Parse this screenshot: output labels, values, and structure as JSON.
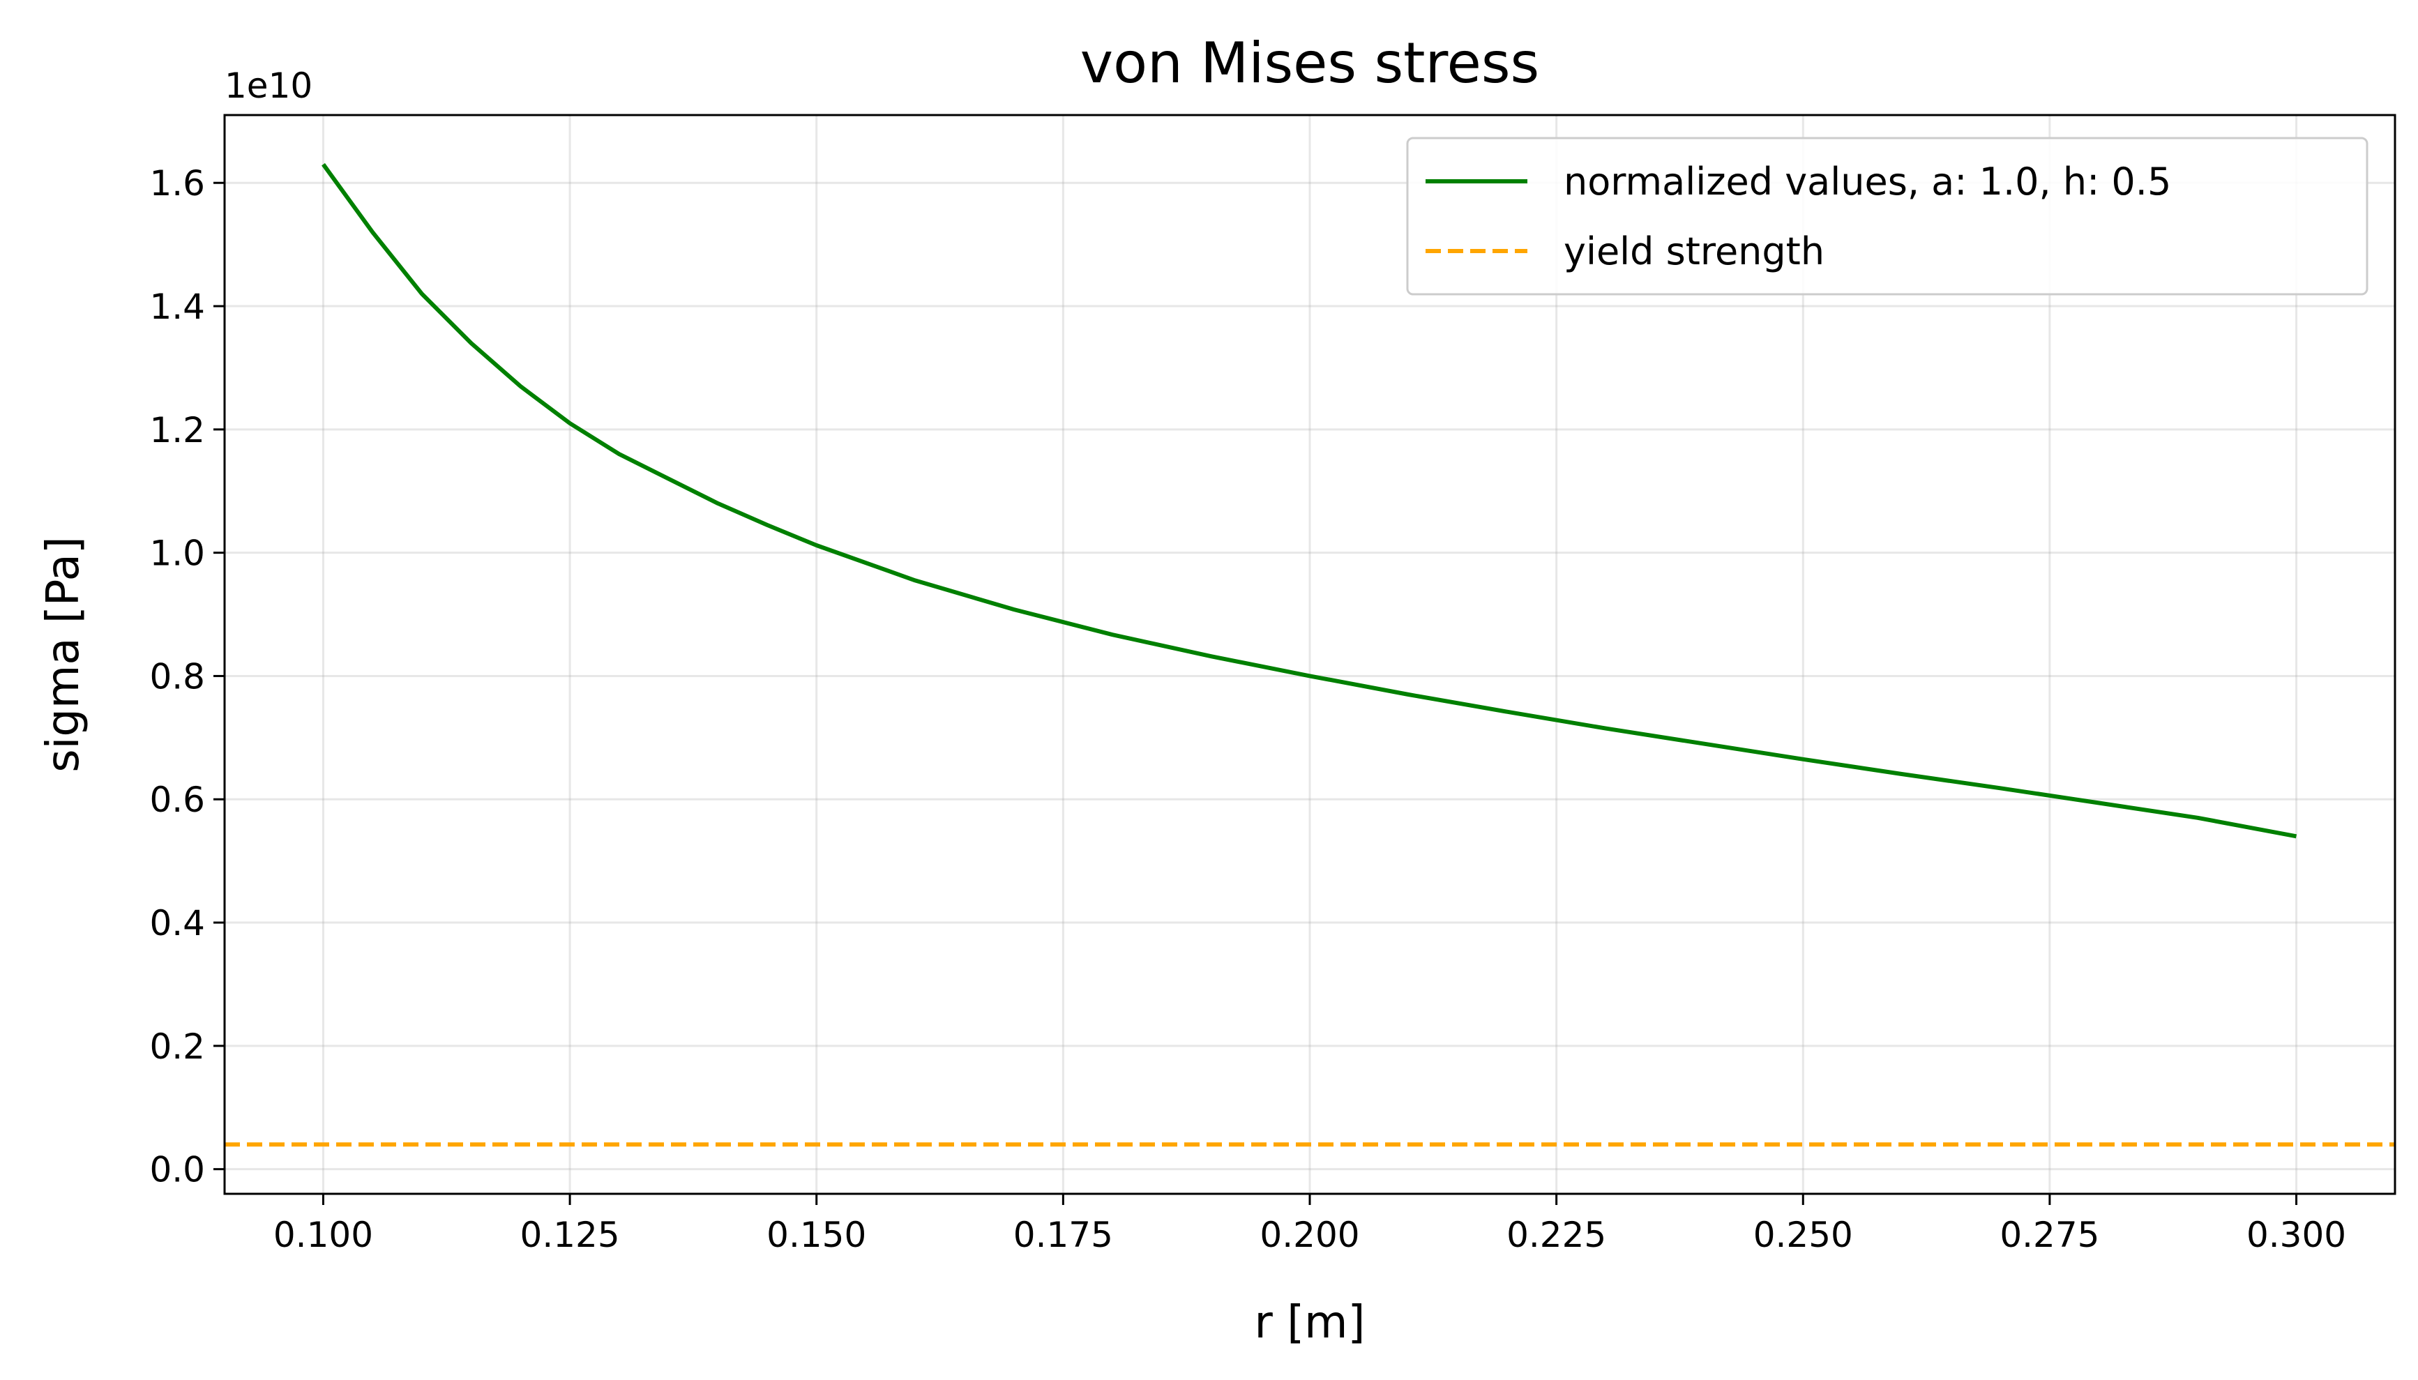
{
  "chart_data": {
    "type": "line",
    "title": "von Mises stress",
    "xlabel": "r [m]",
    "ylabel": "sigma [Pa]",
    "y_offset_label": "1e10",
    "xlim": [
      0.09,
      0.31
    ],
    "ylim": [
      -0.04,
      1.71
    ],
    "x_ticks": [
      "0.100",
      "0.125",
      "0.150",
      "0.175",
      "0.200",
      "0.225",
      "0.250",
      "0.275",
      "0.300"
    ],
    "y_ticks": [
      "0.0",
      "0.2",
      "0.4",
      "0.6",
      "0.8",
      "1.0",
      "1.2",
      "1.4",
      "1.6"
    ],
    "grid": true,
    "legend_position": "upper right",
    "series": [
      {
        "name": "normalized values, a: 1.0, h: 0.5",
        "style": "solid",
        "color": "#008000",
        "x": [
          0.1,
          0.105,
          0.11,
          0.115,
          0.12,
          0.125,
          0.13,
          0.135,
          0.14,
          0.145,
          0.15,
          0.16,
          0.17,
          0.18,
          0.19,
          0.2,
          0.21,
          0.22,
          0.23,
          0.24,
          0.25,
          0.26,
          0.27,
          0.28,
          0.29,
          0.3
        ],
        "y": [
          1.63,
          1.52,
          1.42,
          1.34,
          1.27,
          1.21,
          1.16,
          1.12,
          1.08,
          1.045,
          1.012,
          0.955,
          0.908,
          0.867,
          0.832,
          0.8,
          0.77,
          0.742,
          0.715,
          0.69,
          0.665,
          0.641,
          0.618,
          0.594,
          0.57,
          0.54
        ]
      },
      {
        "name": "yield strength",
        "style": "dashed",
        "color": "#FFA500",
        "x": [
          0.09,
          0.31
        ],
        "y": [
          0.04,
          0.04
        ]
      }
    ]
  }
}
